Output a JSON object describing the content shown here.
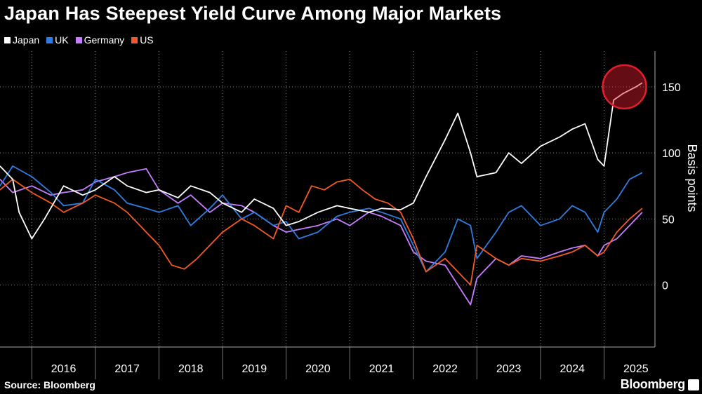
{
  "title": "Japan Has Steepest Yield Curve Among Major Markets",
  "source": "Source: Bloomberg",
  "brand": "Bloomberg",
  "colors": {
    "Japan": "#ffffff",
    "UK": "#2f7de1",
    "Germany": "#c77dff",
    "US": "#f15a22",
    "highlight": "#e11d2e"
  },
  "chart_data": {
    "type": "line",
    "title": "Japan Has Steepest Yield Curve Among Major Markets",
    "xlabel": "",
    "ylabel": "Basis points",
    "ylim": [
      -47,
      177
    ],
    "xlim": [
      2015.5,
      2025.8
    ],
    "yticks": [
      0,
      50,
      100,
      150
    ],
    "xticks": [
      "2016",
      "2017",
      "2018",
      "2019",
      "2020",
      "2021",
      "2022",
      "2023",
      "2024",
      "2025"
    ],
    "legend_position": "top-left",
    "annotation": "highlight circle around Japan 2025 values",
    "series": [
      {
        "name": "Japan",
        "color": "#ffffff",
        "x": [
          2015.5,
          2015.7,
          2015.8,
          2016.0,
          2016.2,
          2016.5,
          2016.8,
          2017.0,
          2017.3,
          2017.5,
          2017.8,
          2018.0,
          2018.3,
          2018.5,
          2018.8,
          2019.0,
          2019.3,
          2019.5,
          2019.8,
          2020.0,
          2020.2,
          2020.5,
          2020.8,
          2021.0,
          2021.3,
          2021.5,
          2021.8,
          2022.0,
          2022.2,
          2022.5,
          2022.7,
          2022.9,
          2023.0,
          2023.3,
          2023.5,
          2023.7,
          2024.0,
          2024.3,
          2024.5,
          2024.7,
          2024.9,
          2025.0,
          2025.15,
          2025.3,
          2025.5,
          2025.6
        ],
        "values": [
          90,
          80,
          55,
          35,
          50,
          75,
          68,
          72,
          82,
          75,
          70,
          72,
          66,
          75,
          70,
          62,
          55,
          65,
          58,
          45,
          48,
          55,
          60,
          58,
          55,
          58,
          57,
          62,
          82,
          110,
          130,
          100,
          82,
          85,
          100,
          92,
          105,
          112,
          118,
          122,
          95,
          90,
          140,
          145,
          150,
          153
        ]
      },
      {
        "name": "UK",
        "color": "#2f7de1",
        "x": [
          2015.5,
          2015.7,
          2016.0,
          2016.3,
          2016.5,
          2016.8,
          2017.0,
          2017.3,
          2017.5,
          2017.8,
          2018.0,
          2018.3,
          2018.5,
          2018.8,
          2019.0,
          2019.3,
          2019.5,
          2019.8,
          2020.0,
          2020.2,
          2020.5,
          2020.8,
          2021.0,
          2021.3,
          2021.5,
          2021.8,
          2022.0,
          2022.2,
          2022.5,
          2022.7,
          2022.9,
          2023.0,
          2023.3,
          2023.5,
          2023.7,
          2024.0,
          2024.3,
          2024.5,
          2024.7,
          2024.9,
          2025.0,
          2025.2,
          2025.4,
          2025.6
        ],
        "values": [
          75,
          90,
          82,
          70,
          60,
          62,
          80,
          72,
          62,
          58,
          55,
          60,
          45,
          58,
          68,
          50,
          55,
          45,
          48,
          35,
          40,
          52,
          55,
          58,
          55,
          50,
          30,
          10,
          25,
          50,
          45,
          20,
          40,
          55,
          60,
          45,
          50,
          60,
          55,
          40,
          55,
          65,
          80,
          85
        ]
      },
      {
        "name": "Germany",
        "color": "#c77dff",
        "x": [
          2015.5,
          2015.7,
          2016.0,
          2016.3,
          2016.5,
          2016.8,
          2017.0,
          2017.3,
          2017.5,
          2017.8,
          2018.0,
          2018.3,
          2018.5,
          2018.8,
          2019.0,
          2019.3,
          2019.5,
          2019.8,
          2020.0,
          2020.2,
          2020.5,
          2020.8,
          2021.0,
          2021.3,
          2021.5,
          2021.8,
          2022.0,
          2022.2,
          2022.5,
          2022.7,
          2022.9,
          2023.0,
          2023.3,
          2023.5,
          2023.7,
          2024.0,
          2024.3,
          2024.5,
          2024.7,
          2024.9,
          2025.0,
          2025.2,
          2025.4,
          2025.6
        ],
        "values": [
          80,
          70,
          75,
          68,
          70,
          72,
          78,
          82,
          85,
          88,
          72,
          62,
          68,
          55,
          62,
          60,
          55,
          45,
          40,
          42,
          45,
          50,
          45,
          55,
          52,
          45,
          25,
          18,
          15,
          0,
          -15,
          5,
          20,
          15,
          22,
          20,
          25,
          28,
          30,
          22,
          30,
          35,
          45,
          55
        ]
      },
      {
        "name": "US",
        "color": "#f15a22",
        "x": [
          2015.5,
          2015.7,
          2016.0,
          2016.3,
          2016.5,
          2016.8,
          2017.0,
          2017.3,
          2017.5,
          2017.8,
          2018.0,
          2018.2,
          2018.4,
          2018.6,
          2018.8,
          2019.0,
          2019.3,
          2019.5,
          2019.8,
          2020.0,
          2020.2,
          2020.4,
          2020.6,
          2020.8,
          2021.0,
          2021.2,
          2021.4,
          2021.6,
          2021.8,
          2022.0,
          2022.2,
          2022.5,
          2022.7,
          2022.9,
          2023.0,
          2023.3,
          2023.5,
          2023.7,
          2024.0,
          2024.3,
          2024.5,
          2024.7,
          2024.9,
          2025.0,
          2025.2,
          2025.4,
          2025.6
        ],
        "values": [
          72,
          80,
          70,
          62,
          55,
          62,
          68,
          62,
          55,
          40,
          30,
          15,
          12,
          20,
          30,
          40,
          50,
          45,
          35,
          60,
          55,
          75,
          72,
          78,
          80,
          72,
          65,
          62,
          55,
          35,
          10,
          20,
          10,
          0,
          30,
          20,
          15,
          20,
          18,
          22,
          25,
          30,
          22,
          25,
          40,
          50,
          58
        ]
      }
    ]
  }
}
